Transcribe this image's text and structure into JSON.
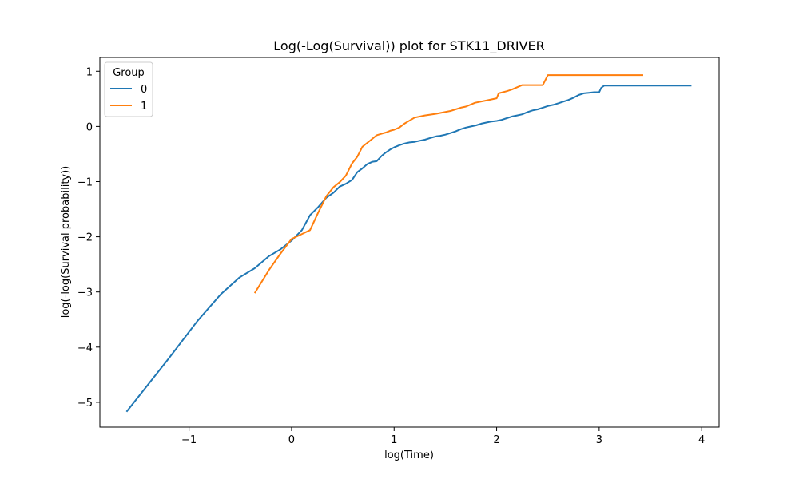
{
  "chart_data": {
    "type": "line",
    "title": "Log(-Log(Survival)) plot for STK11_DRIVER",
    "xlabel": "log(Time)",
    "ylabel": "log(-log(Survival probability))",
    "xlim": [
      -1.87,
      4.17
    ],
    "ylim": [
      -5.45,
      1.25
    ],
    "x_ticks": [
      -1,
      0,
      1,
      2,
      3,
      4
    ],
    "y_ticks": [
      -5,
      -4,
      -3,
      -2,
      -1,
      0,
      1
    ],
    "x_tick_labels": [
      "−1",
      "0",
      "1",
      "2",
      "3",
      "4"
    ],
    "y_tick_labels": [
      "−5",
      "−4",
      "−3",
      "−2",
      "−1",
      "0",
      "1"
    ],
    "grid": false,
    "legend": {
      "title": "Group",
      "placement": "top-left"
    },
    "series": [
      {
        "name": "0",
        "color": "#1f77b4",
        "x": [
          -1.61,
          -1.2,
          -0.92,
          -0.69,
          -0.51,
          -0.36,
          -0.22,
          -0.11,
          0.0,
          0.1,
          0.18,
          0.26,
          0.34,
          0.41,
          0.47,
          0.53,
          0.59,
          0.64,
          0.69,
          0.74,
          0.79,
          0.83,
          0.88,
          0.92,
          0.96,
          1.0,
          1.05,
          1.1,
          1.15,
          1.2,
          1.25,
          1.3,
          1.35,
          1.41,
          1.45,
          1.5,
          1.55,
          1.6,
          1.65,
          1.7,
          1.75,
          1.8,
          1.85,
          1.9,
          1.95,
          2.0,
          2.05,
          2.1,
          2.15,
          2.2,
          2.25,
          2.3,
          2.35,
          2.4,
          2.45,
          2.5,
          2.55,
          2.6,
          2.65,
          2.7,
          2.75,
          2.8,
          2.85,
          2.9,
          2.95,
          3.0,
          3.02,
          3.05,
          3.5,
          3.9
        ],
        "y": [
          -5.17,
          -4.21,
          -3.53,
          -3.04,
          -2.74,
          -2.57,
          -2.35,
          -2.23,
          -2.07,
          -1.88,
          -1.61,
          -1.46,
          -1.29,
          -1.2,
          -1.09,
          -1.04,
          -0.97,
          -0.83,
          -0.76,
          -0.68,
          -0.64,
          -0.63,
          -0.53,
          -0.47,
          -0.42,
          -0.38,
          -0.34,
          -0.31,
          -0.29,
          -0.28,
          -0.26,
          -0.24,
          -0.21,
          -0.18,
          -0.17,
          -0.15,
          -0.12,
          -0.09,
          -0.05,
          -0.02,
          0.0,
          0.02,
          0.05,
          0.07,
          0.09,
          0.1,
          0.12,
          0.15,
          0.18,
          0.2,
          0.22,
          0.26,
          0.29,
          0.31,
          0.34,
          0.37,
          0.39,
          0.42,
          0.45,
          0.48,
          0.52,
          0.57,
          0.6,
          0.61,
          0.62,
          0.62,
          0.7,
          0.74,
          0.74,
          0.74
        ]
      },
      {
        "name": "1",
        "color": "#ff7f0e",
        "x": [
          -0.36,
          -0.22,
          -0.11,
          0.0,
          0.18,
          0.26,
          0.34,
          0.41,
          0.47,
          0.53,
          0.59,
          0.64,
          0.69,
          0.79,
          0.83,
          0.88,
          0.92,
          0.96,
          1.0,
          1.05,
          1.1,
          1.2,
          1.3,
          1.41,
          1.55,
          1.65,
          1.7,
          1.79,
          1.9,
          2.0,
          2.02,
          2.1,
          2.15,
          2.2,
          2.25,
          2.45,
          2.48,
          2.5,
          2.7,
          3.0,
          3.43
        ],
        "y": [
          -3.02,
          -2.6,
          -2.31,
          -2.04,
          -1.88,
          -1.56,
          -1.26,
          -1.1,
          -1.01,
          -0.89,
          -0.67,
          -0.55,
          -0.37,
          -0.22,
          -0.16,
          -0.13,
          -0.11,
          -0.08,
          -0.06,
          -0.02,
          0.05,
          0.16,
          0.2,
          0.23,
          0.28,
          0.34,
          0.36,
          0.43,
          0.47,
          0.51,
          0.6,
          0.64,
          0.67,
          0.71,
          0.75,
          0.75,
          0.86,
          0.93,
          0.93,
          0.93,
          0.93
        ]
      }
    ]
  }
}
